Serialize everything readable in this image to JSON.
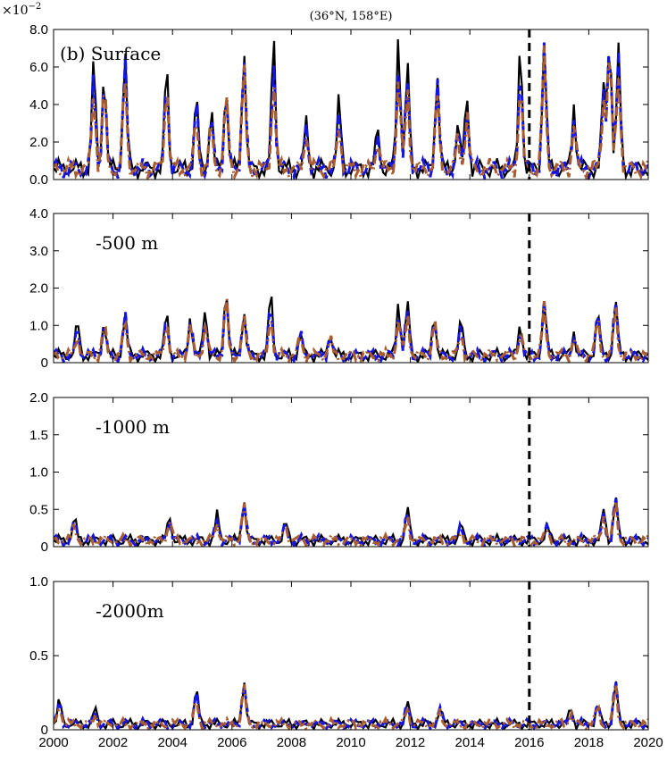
{
  "figure": {
    "title": "(36°N, 158°E)",
    "exponent_label": "×10",
    "exponent_power": "−2"
  },
  "chart_data": [
    {
      "type": "line",
      "panel_label": "(b) Surface",
      "ylim": [
        0,
        8
      ],
      "yticks": [
        "0.0",
        "2.0",
        "4.0",
        "6.0",
        "8.0"
      ],
      "xlim": [
        2000,
        2020
      ],
      "event_year": 2016,
      "base": 0.9,
      "peaks": [
        [
          2001.35,
          5.9
        ],
        [
          2001.7,
          5.6
        ],
        [
          2002.4,
          6.0
        ],
        [
          2003.8,
          5.9
        ],
        [
          2004.8,
          3.6
        ],
        [
          2005.3,
          3.2
        ],
        [
          2005.8,
          4.9
        ],
        [
          2006.4,
          6.4
        ],
        [
          2007.4,
          7.0
        ],
        [
          2008.5,
          2.5
        ],
        [
          2009.6,
          3.6
        ],
        [
          2010.9,
          2.0
        ],
        [
          2011.6,
          7.0
        ],
        [
          2011.9,
          5.9
        ],
        [
          2012.9,
          4.9
        ],
        [
          2013.6,
          2.3
        ],
        [
          2013.9,
          4.2
        ],
        [
          2015.7,
          6.5
        ],
        [
          2016.5,
          7.5
        ],
        [
          2017.5,
          3.2
        ],
        [
          2018.5,
          4.9
        ],
        [
          2018.7,
          7.6
        ],
        [
          2019.0,
          6.3
        ]
      ],
      "series": [
        {
          "color": "#000000",
          "dash": "solid"
        },
        {
          "color": "#1414e6",
          "dash": "dashed"
        },
        {
          "color": "#a95c2c",
          "dash": "dashdot"
        }
      ]
    },
    {
      "type": "line",
      "panel_label": "-500 m",
      "ylim": [
        0,
        4
      ],
      "yticks": [
        "0",
        "1.0",
        "2.0",
        "3.0",
        "4.0"
      ],
      "xlim": [
        2000,
        2020
      ],
      "event_year": 2016,
      "base": 0.3,
      "peaks": [
        [
          2000.8,
          0.8
        ],
        [
          2001.7,
          1.0
        ],
        [
          2002.4,
          1.1
        ],
        [
          2003.8,
          1.2
        ],
        [
          2004.6,
          1.0
        ],
        [
          2005.1,
          1.2
        ],
        [
          2005.8,
          2.0
        ],
        [
          2006.4,
          1.2
        ],
        [
          2007.3,
          1.6
        ],
        [
          2008.3,
          0.6
        ],
        [
          2009.3,
          0.6
        ],
        [
          2011.6,
          1.4
        ],
        [
          2011.9,
          1.5
        ],
        [
          2012.8,
          1.1
        ],
        [
          2013.7,
          0.9
        ],
        [
          2015.7,
          0.8
        ],
        [
          2016.5,
          1.6
        ],
        [
          2017.5,
          0.6
        ],
        [
          2018.3,
          1.3
        ],
        [
          2018.9,
          1.5
        ]
      ],
      "series": [
        {
          "color": "#000000",
          "dash": "solid"
        },
        {
          "color": "#1414e6",
          "dash": "dashed"
        },
        {
          "color": "#a95c2c",
          "dash": "dashdot"
        }
      ]
    },
    {
      "type": "line",
      "panel_label": "-1000 m",
      "ylim": [
        0,
        2
      ],
      "yticks": [
        "0",
        "0.5",
        "1.0",
        "1.5",
        "2.0"
      ],
      "xlim": [
        2000,
        2020
      ],
      "event_year": 2016,
      "base": 0.13,
      "peaks": [
        [
          2000.7,
          0.27
        ],
        [
          2003.9,
          0.35
        ],
        [
          2005.5,
          0.35
        ],
        [
          2006.4,
          0.55
        ],
        [
          2007.8,
          0.25
        ],
        [
          2011.9,
          0.45
        ],
        [
          2013.7,
          0.2
        ],
        [
          2016.6,
          0.2
        ],
        [
          2018.5,
          0.45
        ],
        [
          2018.9,
          0.6
        ]
      ],
      "series": [
        {
          "color": "#000000",
          "dash": "solid"
        },
        {
          "color": "#1414e6",
          "dash": "dashed"
        },
        {
          "color": "#a95c2c",
          "dash": "dashdot"
        }
      ]
    },
    {
      "type": "line",
      "panel_label": "-2000m",
      "ylim": [
        0,
        1
      ],
      "yticks": [
        "0",
        "0.5",
        "1.0"
      ],
      "xlim": [
        2000,
        2020
      ],
      "event_year": 2016,
      "base": 0.06,
      "peaks": [
        [
          2000.2,
          0.15
        ],
        [
          2001.4,
          0.1
        ],
        [
          2004.8,
          0.22
        ],
        [
          2006.4,
          0.3
        ],
        [
          2011.9,
          0.15
        ],
        [
          2013.0,
          0.1
        ],
        [
          2017.4,
          0.1
        ],
        [
          2018.3,
          0.15
        ],
        [
          2018.9,
          0.3
        ]
      ],
      "series": [
        {
          "color": "#000000",
          "dash": "solid"
        },
        {
          "color": "#1414e6",
          "dash": "dashed"
        },
        {
          "color": "#a95c2c",
          "dash": "dashdot"
        }
      ]
    }
  ],
  "x_axis": {
    "ticks": [
      "2000",
      "2002",
      "2004",
      "2006",
      "2008",
      "2010",
      "2012",
      "2014",
      "2016",
      "2018",
      "2020"
    ]
  }
}
